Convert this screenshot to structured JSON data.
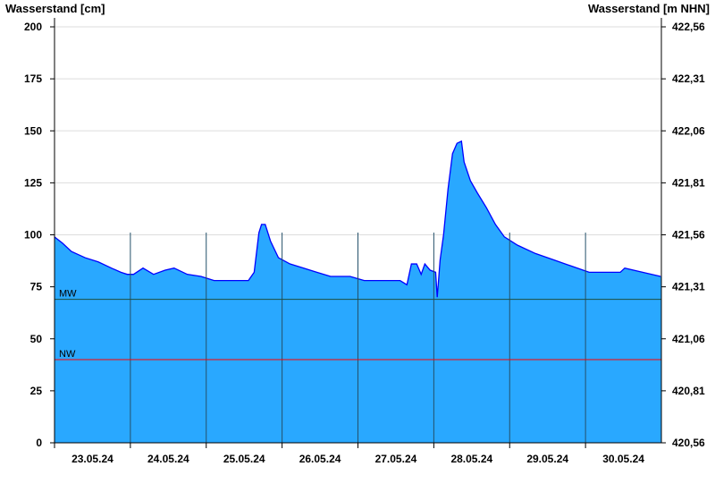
{
  "chart_data": {
    "type": "area",
    "ylabel_left": "Wasserstand [cm]",
    "ylabel_right": "Wasserstand [m NHN]",
    "ylim": [
      0,
      200
    ],
    "left_ticks": [
      "0",
      "25",
      "50",
      "75",
      "100",
      "125",
      "150",
      "175",
      "200"
    ],
    "right_ticks": [
      "420,56",
      "420,81",
      "421,06",
      "421,31",
      "421,56",
      "421,81",
      "422,06",
      "422,31",
      "422,56"
    ],
    "xlim": [
      "2024-05-23T00:00",
      "2024-05-31T00:00"
    ],
    "x_tick_labels": [
      "23.05.24",
      "24.05.24",
      "25.05.24",
      "26.05.24",
      "27.05.24",
      "28.05.24",
      "29.05.24",
      "30.05.24"
    ],
    "grid": true,
    "colors": {
      "fill": "#29a8ff",
      "line": "#0000ff",
      "mw": "#1f4f3f",
      "nw": "#ff0000",
      "grid": "#dddddd"
    },
    "reference_lines": [
      {
        "label": "MW",
        "value": 69
      },
      {
        "label": "NW",
        "value": 40
      }
    ],
    "series": [
      {
        "x": [
          "2024-05-23T00:00",
          "2024-05-23T02:30",
          "2024-05-23T05:20",
          "2024-05-23T09:40",
          "2024-05-23T13:50",
          "2024-05-23T18:00",
          "2024-05-23T21:00",
          "2024-05-23T23:00",
          "2024-05-24T01:00",
          "2024-05-24T04:00",
          "2024-05-24T07:20",
          "2024-05-24T11:00",
          "2024-05-24T13:50",
          "2024-05-24T18:00",
          "2024-05-24T22:20",
          "2024-05-25T02:30",
          "2024-05-25T13:20",
          "2024-05-25T15:10",
          "2024-05-25T16:40",
          "2024-05-25T17:30",
          "2024-05-25T18:40",
          "2024-05-25T20:20",
          "2024-05-25T22:50",
          "2024-05-26T02:30",
          "2024-05-26T06:50",
          "2024-05-26T11:00",
          "2024-05-26T15:20",
          "2024-05-26T21:30",
          "2024-05-27T02:00",
          "2024-05-27T13:20",
          "2024-05-27T15:30",
          "2024-05-27T16:55",
          "2024-05-27T18:35",
          "2024-05-27T20:00",
          "2024-05-27T21:10",
          "2024-05-27T22:50",
          "2024-05-28T00:35",
          "2024-05-28T01:05",
          "2024-05-28T02:00",
          "2024-05-28T03:05",
          "2024-05-28T04:30",
          "2024-05-28T05:55",
          "2024-05-28T07:20",
          "2024-05-28T08:45",
          "2024-05-28T09:35",
          "2024-05-28T11:35",
          "2024-05-28T13:50",
          "2024-05-28T16:40",
          "2024-05-28T19:30",
          "2024-05-28T22:20",
          "2024-05-29T02:30",
          "2024-05-29T08:10",
          "2024-05-29T13:50",
          "2024-05-29T19:30",
          "2024-05-30T01:10",
          "2024-05-30T11:00",
          "2024-05-30T12:25",
          "2024-05-30T18:05",
          "2024-05-30T23:45"
        ],
        "values": [
          99,
          96,
          92,
          89,
          87,
          84,
          82,
          81,
          81,
          84,
          81,
          83,
          84,
          81,
          80,
          78,
          78,
          82,
          101,
          105,
          105,
          97,
          89,
          86,
          84,
          82,
          80,
          80,
          78,
          78,
          76,
          86,
          86,
          81,
          86,
          83,
          82,
          70,
          88,
          100,
          122,
          139,
          144,
          145,
          135,
          126,
          120,
          113,
          105,
          99,
          95,
          91,
          88,
          85,
          82,
          82,
          84,
          82,
          80
        ]
      }
    ]
  }
}
